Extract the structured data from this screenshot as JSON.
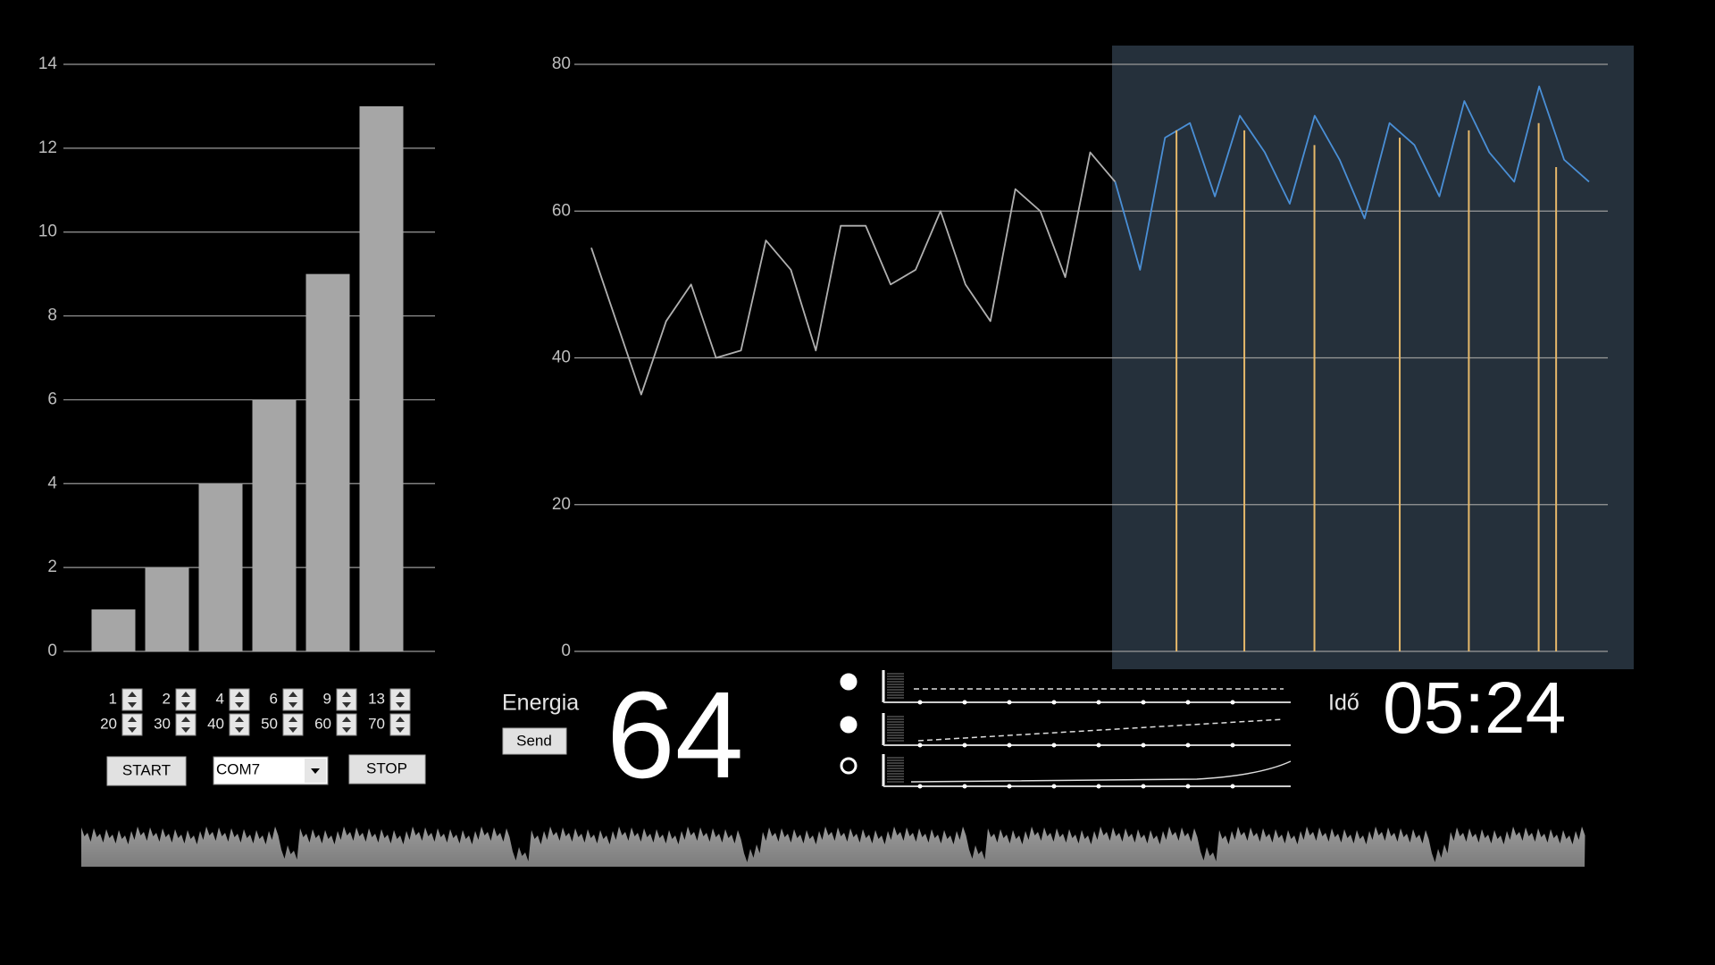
{
  "chart_data": [
    {
      "type": "bar",
      "values": [
        1,
        2,
        4,
        6,
        9,
        13
      ],
      "color": "#a6a6a6",
      "ylim": [
        0,
        14
      ],
      "yticks": [
        0,
        2,
        4,
        6,
        8,
        10,
        12,
        14
      ],
      "grid": true
    },
    {
      "type": "line",
      "xlim": [
        0,
        40
      ],
      "ylim": [
        0,
        80
      ],
      "yticks": [
        0,
        20,
        40,
        60,
        80
      ],
      "grid": true,
      "series": [
        {
          "color": "#b0b0b0",
          "values": [
            55,
            45,
            35,
            45,
            50,
            40,
            41,
            56,
            52,
            41,
            58,
            58,
            50,
            52,
            60,
            50,
            45,
            63,
            60,
            51,
            68,
            64,
            null,
            null,
            null,
            null,
            null,
            null,
            null,
            null,
            null,
            null,
            null,
            null,
            null,
            null,
            null,
            null,
            null,
            null,
            null
          ]
        },
        {
          "color": "#4a8fd6",
          "values": [
            null,
            null,
            null,
            null,
            null,
            null,
            null,
            null,
            null,
            null,
            null,
            null,
            null,
            null,
            null,
            null,
            null,
            null,
            null,
            null,
            null,
            64,
            52,
            70,
            72,
            62,
            73,
            68,
            61,
            73,
            67,
            59,
            72,
            69,
            62,
            75,
            68,
            64,
            77,
            67,
            64
          ]
        }
      ],
      "markers": {
        "color": "#e6b86a",
        "x": [
          23.46,
          26.18,
          28.99,
          32.41,
          35.18,
          37.98,
          38.68
        ],
        "values": [
          71,
          71,
          69,
          70,
          71,
          72,
          66
        ]
      }
    }
  ],
  "controls": {
    "spinners_top": [
      "1",
      "2",
      "4",
      "6",
      "9",
      "13"
    ],
    "spinners_bottom": [
      "20",
      "30",
      "40",
      "50",
      "60",
      "70"
    ],
    "start": "START",
    "port": "COM7",
    "stop": "STOP",
    "energy_label": "Energia",
    "send": "Send",
    "energy_value": "64",
    "time_label": "Idő",
    "time_value": "05:24"
  }
}
